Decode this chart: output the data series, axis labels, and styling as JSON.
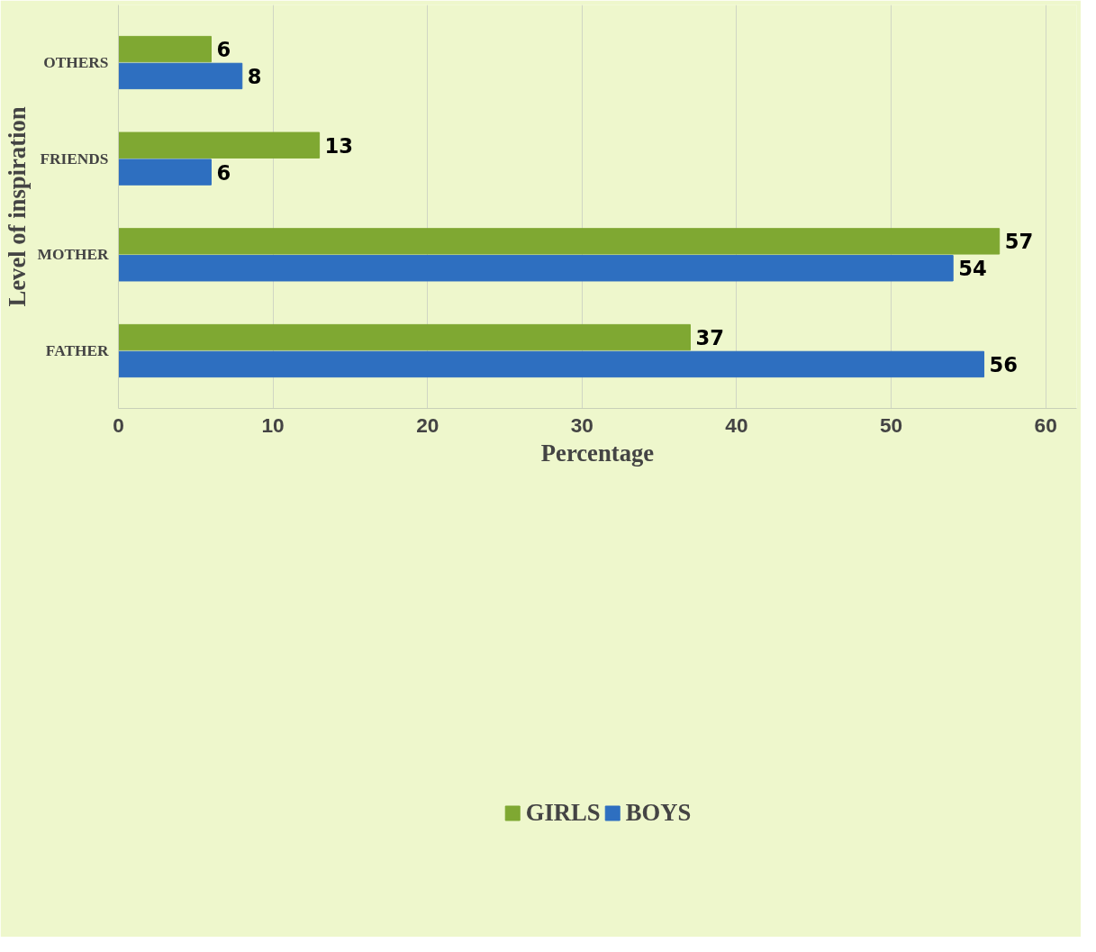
{
  "chart_data": {
    "type": "bar",
    "orientation": "horizontal",
    "xlabel": "Percentage",
    "ylabel": "Level of inspiration",
    "categories": [
      "OTHERS",
      "FRIENDS",
      "MOTHER",
      "FATHER"
    ],
    "series": [
      {
        "name": "GIRLS",
        "color": "#7fa832",
        "values": [
          6,
          13,
          57,
          37
        ]
      },
      {
        "name": "BOYS",
        "color": "#2e6fc0",
        "values": [
          8,
          6,
          54,
          56
        ]
      }
    ],
    "xlim": [
      0,
      62
    ],
    "xticks": [
      0,
      10,
      20,
      30,
      40,
      50,
      60
    ],
    "grid": "x",
    "legend": "bottom",
    "data_labels": true
  }
}
